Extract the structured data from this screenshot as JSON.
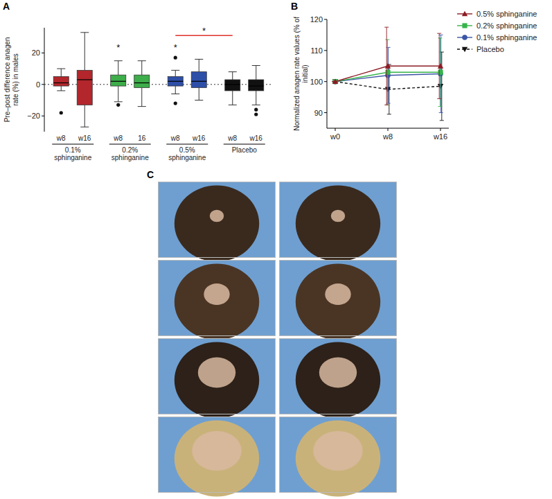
{
  "chart_data": [
    {
      "type": "box",
      "panel": "A",
      "y_label": "Pre–post difference anagen rate (%) in males",
      "ylim": [
        -30,
        36
      ],
      "yticks": [
        {
          "value": -20,
          "label": "−20"
        },
        0,
        20
      ],
      "reference_line": 0,
      "grid": false,
      "groups": [
        {
          "name": "0.1% sphinganine",
          "color": "#b3262b",
          "boxes": [
            {
              "label": "w8",
              "min": -4,
              "q1": -1,
              "median": 1,
              "q3": 5,
              "max": 10,
              "outliers": [
                -18
              ]
            },
            {
              "label": "w16",
              "min": -27,
              "q1": -13,
              "median": 3,
              "q3": 9,
              "max": 33,
              "outliers": []
            }
          ]
        },
        {
          "name": "0.2% sphinganine",
          "color": "#3dae49",
          "boxes": [
            {
              "label": "w8",
              "min": -11,
              "q1": -1,
              "median": 2,
              "q3": 6,
              "max": 15,
              "outliers": [
                -13
              ]
            },
            {
              "label": "16",
              "min": -14,
              "q1": -2,
              "median": 1,
              "q3": 6,
              "max": 15,
              "outliers": []
            }
          ]
        },
        {
          "name": "0.5% sphinganine",
          "color": "#2e4fa8",
          "boxes": [
            {
              "label": "w8",
              "min": -6,
              "q1": -1,
              "median": 2,
              "q3": 5,
              "max": 9,
              "outliers": [
                17,
                -12
              ]
            },
            {
              "label": "w16",
              "min": -10,
              "q1": -2,
              "median": 2,
              "q3": 8,
              "max": 16,
              "outliers": []
            }
          ]
        },
        {
          "name": "Placebo",
          "color": "#111111",
          "boxes": [
            {
              "label": "w8",
              "min": -13,
              "q1": -4,
              "median": 0,
              "q3": 3,
              "max": 8,
              "outliers": []
            },
            {
              "label": "w16",
              "min": -13,
              "q1": -4,
              "median": -1,
              "q3": 3,
              "max": 12,
              "outliers": [
                -16,
                -19
              ]
            }
          ]
        }
      ],
      "annotations": [
        {
          "text": "*",
          "group": 1,
          "box": 0,
          "y": 24
        },
        {
          "text": "*",
          "group": 2,
          "box": 0,
          "y": 24
        }
      ],
      "significance": {
        "text": "*",
        "from": [
          2,
          0
        ],
        "to": [
          3,
          0
        ],
        "y": 31,
        "color": "#e0302a"
      }
    },
    {
      "type": "line",
      "panel": "B",
      "y_label": "Normalized anagen rate values (% of initial)",
      "categories": [
        "w0",
        "w8",
        "w16"
      ],
      "ylim": [
        85,
        120
      ],
      "yticks": [
        90,
        100,
        110,
        120
      ],
      "grid": false,
      "legend": "right",
      "series": [
        {
          "name": "0.5% sphinganine",
          "color": "#8b1c24",
          "marker": "triangle",
          "line_style": "solid",
          "values": [
            100,
            105,
            105
          ],
          "errors": [
            0,
            12.5,
            10.5
          ]
        },
        {
          "name": "0.2% sphinganine",
          "color": "#35b44a",
          "marker": "square",
          "line_style": "solid",
          "values": [
            100,
            103,
            103
          ],
          "errors": [
            0,
            10.5,
            11
          ]
        },
        {
          "name": "0.1% sphinganine",
          "color": "#3b55a5",
          "marker": "circle",
          "line_style": "solid",
          "values": [
            100,
            102,
            102.5
          ],
          "errors": [
            0,
            9,
            12.5
          ]
        },
        {
          "name": "Placebo",
          "color": "#111111",
          "marker": "triangle-down",
          "line_style": "dashed",
          "values": [
            100,
            97.5,
            98.5
          ],
          "errors": [
            0,
            8,
            11
          ]
        }
      ]
    }
  ],
  "image_panel": {
    "panel": "C",
    "rows": 4,
    "columns": 2
  }
}
